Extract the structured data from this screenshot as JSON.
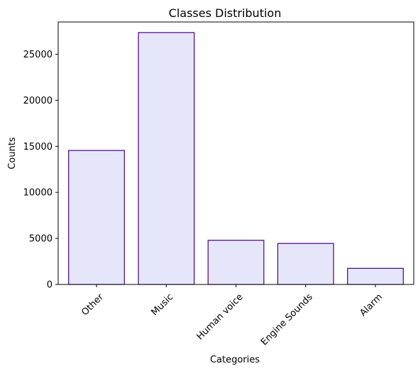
{
  "chart_data": {
    "type": "bar",
    "title": "Classes Distribution",
    "xlabel": "Categories",
    "ylabel": "Counts",
    "categories": [
      "Other",
      "Music",
      "Human voice",
      "Engine Sounds",
      "Alarm"
    ],
    "values": [
      14550,
      27350,
      4800,
      4450,
      1750
    ],
    "ylim": [
      0,
      28500
    ],
    "yticks": [
      0,
      5000,
      10000,
      15000,
      20000,
      25000
    ],
    "ytick_labels": [
      "0",
      "5000",
      "10000",
      "15000",
      "20000",
      "25000"
    ],
    "xtick_rotation": 45,
    "grid": false,
    "legend": "none",
    "colors": {
      "bar_fill": "#e6e6fa",
      "bar_edge": "#4b0082",
      "axis": "#000000",
      "text": "#000000",
      "background": "#ffffff"
    }
  }
}
